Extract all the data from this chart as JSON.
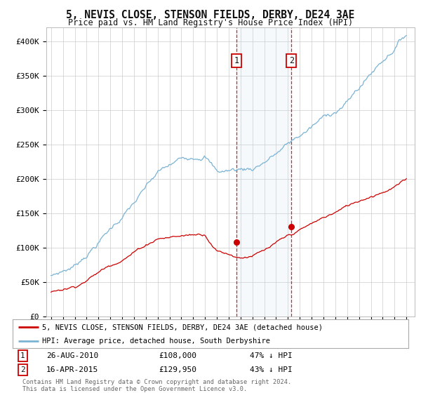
{
  "title": "5, NEVIS CLOSE, STENSON FIELDS, DERBY, DE24 3AE",
  "subtitle": "Price paid vs. HM Land Registry's House Price Index (HPI)",
  "ylim": [
    0,
    420000
  ],
  "yticks": [
    0,
    50000,
    100000,
    150000,
    200000,
    250000,
    300000,
    350000,
    400000
  ],
  "ytick_labels": [
    "£0",
    "£50K",
    "£100K",
    "£150K",
    "£200K",
    "£250K",
    "£300K",
    "£350K",
    "£400K"
  ],
  "hpi_color": "#7ab3d4",
  "price_color": "#cc0000",
  "sale1_date": 2010.65,
  "sale1_price": 108000,
  "sale2_date": 2015.29,
  "sale2_price": 129950,
  "shade_color": "#ddeeff",
  "legend_label1": "5, NEVIS CLOSE, STENSON FIELDS, DERBY, DE24 3AE (detached house)",
  "legend_label2": "HPI: Average price, detached house, South Derbyshire",
  "note1_num": "1",
  "note1_date": "26-AUG-2010",
  "note1_price": "£108,000",
  "note1_hpi": "47% ↓ HPI",
  "note2_num": "2",
  "note2_date": "16-APR-2015",
  "note2_price": "£129,950",
  "note2_hpi": "43% ↓ HPI",
  "footnote": "Contains HM Land Registry data © Crown copyright and database right 2024.\nThis data is licensed under the Open Government Licence v3.0.",
  "background_color": "#ffffff",
  "grid_color": "#cccccc",
  "xstart": 1995,
  "xend": 2025
}
